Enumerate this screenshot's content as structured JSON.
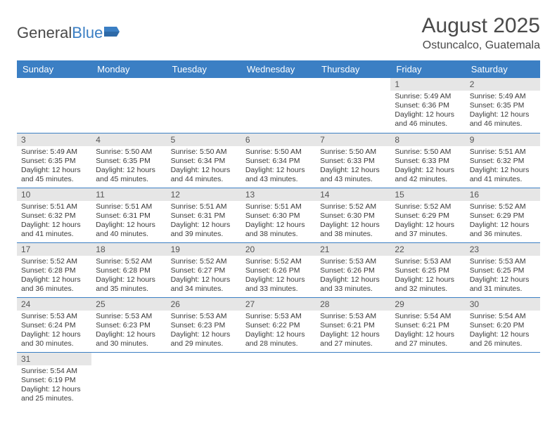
{
  "logo": {
    "text1": "General",
    "text2": "Blue"
  },
  "title": "August 2025",
  "location": "Ostuncalco, Guatemala",
  "colors": {
    "header_bg": "#3b7fc4",
    "header_text": "#ffffff",
    "daynum_bg": "#e6e6e6",
    "border": "#3b7fc4",
    "body_text": "#3a3a3a"
  },
  "weekdays": [
    "Sunday",
    "Monday",
    "Tuesday",
    "Wednesday",
    "Thursday",
    "Friday",
    "Saturday"
  ],
  "weeks": [
    [
      null,
      null,
      null,
      null,
      null,
      {
        "n": "1",
        "sr": "5:49 AM",
        "ss": "6:36 PM",
        "dl": "12 hours and 46 minutes."
      },
      {
        "n": "2",
        "sr": "5:49 AM",
        "ss": "6:35 PM",
        "dl": "12 hours and 46 minutes."
      }
    ],
    [
      {
        "n": "3",
        "sr": "5:49 AM",
        "ss": "6:35 PM",
        "dl": "12 hours and 45 minutes."
      },
      {
        "n": "4",
        "sr": "5:50 AM",
        "ss": "6:35 PM",
        "dl": "12 hours and 45 minutes."
      },
      {
        "n": "5",
        "sr": "5:50 AM",
        "ss": "6:34 PM",
        "dl": "12 hours and 44 minutes."
      },
      {
        "n": "6",
        "sr": "5:50 AM",
        "ss": "6:34 PM",
        "dl": "12 hours and 43 minutes."
      },
      {
        "n": "7",
        "sr": "5:50 AM",
        "ss": "6:33 PM",
        "dl": "12 hours and 43 minutes."
      },
      {
        "n": "8",
        "sr": "5:50 AM",
        "ss": "6:33 PM",
        "dl": "12 hours and 42 minutes."
      },
      {
        "n": "9",
        "sr": "5:51 AM",
        "ss": "6:32 PM",
        "dl": "12 hours and 41 minutes."
      }
    ],
    [
      {
        "n": "10",
        "sr": "5:51 AM",
        "ss": "6:32 PM",
        "dl": "12 hours and 41 minutes."
      },
      {
        "n": "11",
        "sr": "5:51 AM",
        "ss": "6:31 PM",
        "dl": "12 hours and 40 minutes."
      },
      {
        "n": "12",
        "sr": "5:51 AM",
        "ss": "6:31 PM",
        "dl": "12 hours and 39 minutes."
      },
      {
        "n": "13",
        "sr": "5:51 AM",
        "ss": "6:30 PM",
        "dl": "12 hours and 38 minutes."
      },
      {
        "n": "14",
        "sr": "5:52 AM",
        "ss": "6:30 PM",
        "dl": "12 hours and 38 minutes."
      },
      {
        "n": "15",
        "sr": "5:52 AM",
        "ss": "6:29 PM",
        "dl": "12 hours and 37 minutes."
      },
      {
        "n": "16",
        "sr": "5:52 AM",
        "ss": "6:29 PM",
        "dl": "12 hours and 36 minutes."
      }
    ],
    [
      {
        "n": "17",
        "sr": "5:52 AM",
        "ss": "6:28 PM",
        "dl": "12 hours and 36 minutes."
      },
      {
        "n": "18",
        "sr": "5:52 AM",
        "ss": "6:28 PM",
        "dl": "12 hours and 35 minutes."
      },
      {
        "n": "19",
        "sr": "5:52 AM",
        "ss": "6:27 PM",
        "dl": "12 hours and 34 minutes."
      },
      {
        "n": "20",
        "sr": "5:52 AM",
        "ss": "6:26 PM",
        "dl": "12 hours and 33 minutes."
      },
      {
        "n": "21",
        "sr": "5:53 AM",
        "ss": "6:26 PM",
        "dl": "12 hours and 33 minutes."
      },
      {
        "n": "22",
        "sr": "5:53 AM",
        "ss": "6:25 PM",
        "dl": "12 hours and 32 minutes."
      },
      {
        "n": "23",
        "sr": "5:53 AM",
        "ss": "6:25 PM",
        "dl": "12 hours and 31 minutes."
      }
    ],
    [
      {
        "n": "24",
        "sr": "5:53 AM",
        "ss": "6:24 PM",
        "dl": "12 hours and 30 minutes."
      },
      {
        "n": "25",
        "sr": "5:53 AM",
        "ss": "6:23 PM",
        "dl": "12 hours and 30 minutes."
      },
      {
        "n": "26",
        "sr": "5:53 AM",
        "ss": "6:23 PM",
        "dl": "12 hours and 29 minutes."
      },
      {
        "n": "27",
        "sr": "5:53 AM",
        "ss": "6:22 PM",
        "dl": "12 hours and 28 minutes."
      },
      {
        "n": "28",
        "sr": "5:53 AM",
        "ss": "6:21 PM",
        "dl": "12 hours and 27 minutes."
      },
      {
        "n": "29",
        "sr": "5:54 AM",
        "ss": "6:21 PM",
        "dl": "12 hours and 27 minutes."
      },
      {
        "n": "30",
        "sr": "5:54 AM",
        "ss": "6:20 PM",
        "dl": "12 hours and 26 minutes."
      }
    ],
    [
      {
        "n": "31",
        "sr": "5:54 AM",
        "ss": "6:19 PM",
        "dl": "12 hours and 25 minutes."
      },
      null,
      null,
      null,
      null,
      null,
      null
    ]
  ],
  "labels": {
    "sunrise": "Sunrise:",
    "sunset": "Sunset:",
    "daylight": "Daylight:"
  }
}
